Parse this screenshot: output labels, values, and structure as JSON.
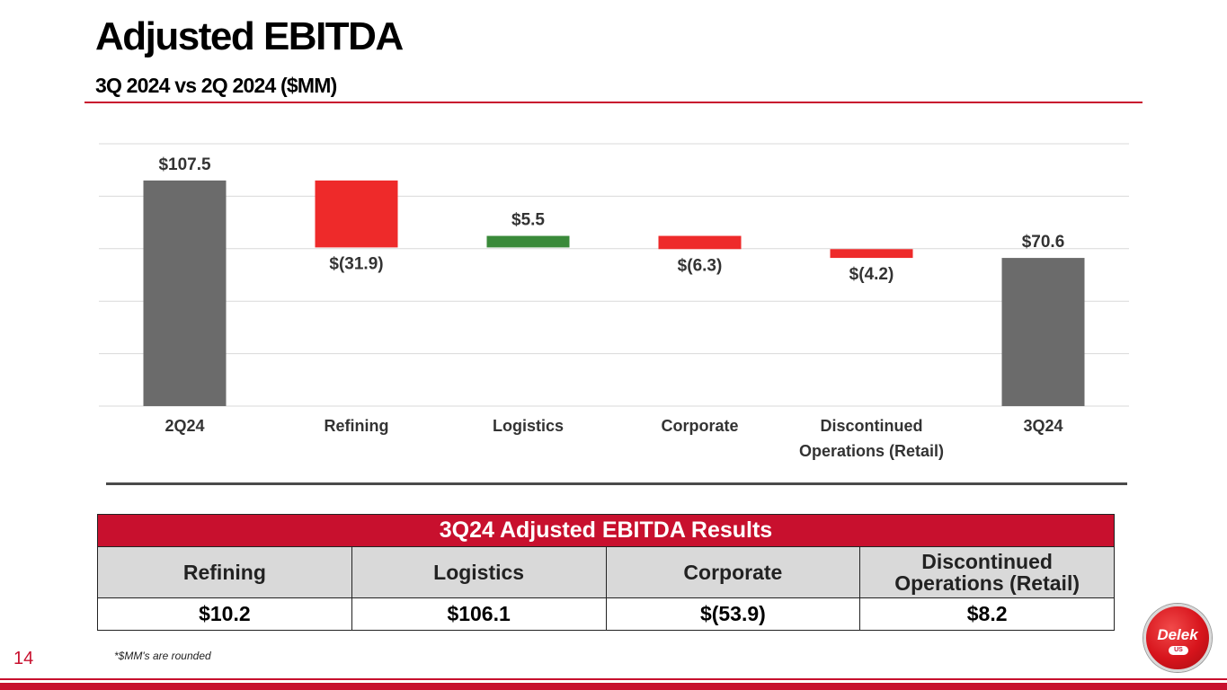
{
  "header": {
    "title": "Adjusted EBITDA",
    "subtitle": "3Q 2024 vs 2Q 2024 ($MM)"
  },
  "chart_data": {
    "type": "waterfall",
    "title": "",
    "xlabel": "",
    "ylabel": "",
    "grid": true,
    "categories": [
      "2Q24",
      "Refining",
      "Logistics",
      "Corporate",
      "Discontinued Operations (Retail)",
      "3Q24"
    ],
    "category_labels": [
      [
        "2Q24"
      ],
      [
        "Refining"
      ],
      [
        "Logistics"
      ],
      [
        "Corporate"
      ],
      [
        "Discontinued",
        "Operations (Retail)"
      ],
      [
        "3Q24"
      ]
    ],
    "values": [
      107.5,
      -31.9,
      5.5,
      -6.3,
      -4.2,
      70.6
    ],
    "kinds": [
      "total",
      "delta",
      "delta",
      "delta",
      "delta",
      "total"
    ],
    "data_labels": [
      "$107.5",
      "$(31.9)",
      "$5.5",
      "$(6.3)",
      "$(4.2)",
      "$70.6"
    ],
    "colors": {
      "total": "#6b6b6b",
      "increase": "#3a8a3a",
      "decrease": "#ee2a2a"
    },
    "ylim": [
      0,
      125
    ],
    "gridline_step": 25
  },
  "results_table": {
    "title": "3Q24 Adjusted EBITDA Results",
    "headers": [
      [
        "Refining"
      ],
      [
        "Logistics"
      ],
      [
        "Corporate"
      ],
      [
        "Discontinued",
        "Operations (Retail)"
      ]
    ],
    "values": [
      "$10.2",
      "$106.1",
      "$(53.9)",
      "$8.2"
    ]
  },
  "footer": {
    "page_number": "14",
    "footnote": "*$MM's are rounded"
  },
  "logo": {
    "name": "Delek",
    "badge": "US"
  },
  "colors": {
    "brand_red": "#c8102e"
  }
}
